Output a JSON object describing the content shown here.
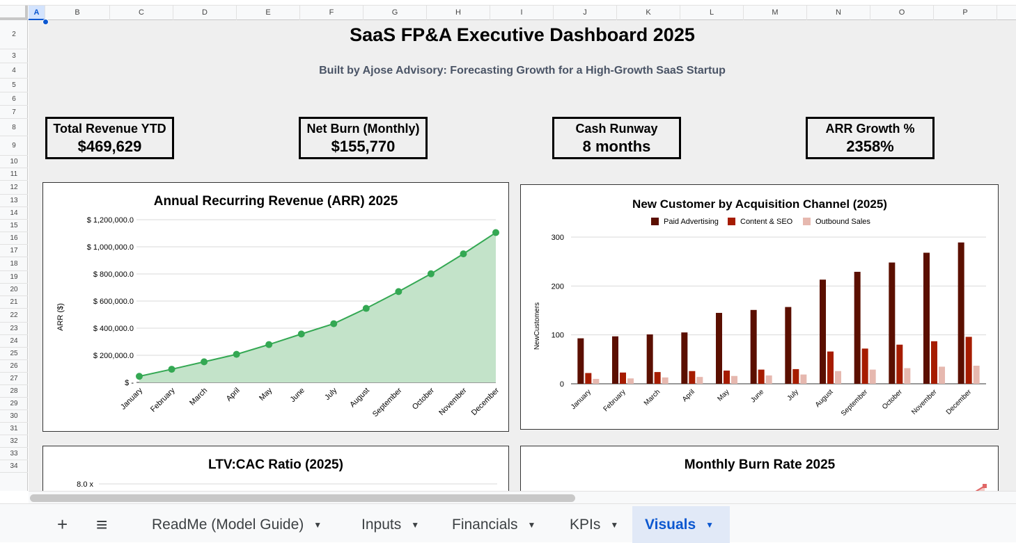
{
  "columns": [
    "A",
    "B",
    "C",
    "D",
    "E",
    "F",
    "G",
    "H",
    "I",
    "J",
    "K",
    "L",
    "M",
    "N",
    "O",
    "P"
  ],
  "rows": [
    "2",
    "3",
    "4",
    "5",
    "6",
    "7",
    "8",
    "9",
    "10",
    "11",
    "12",
    "13",
    "14",
    "15",
    "16",
    "17",
    "18",
    "19",
    "20",
    "21",
    "22",
    "23",
    "24",
    "25",
    "26",
    "27",
    "28",
    "29",
    "30",
    "31",
    "32",
    "33",
    "34"
  ],
  "dashboard": {
    "title": "SaaS FP&A Executive Dashboard 2025",
    "subtitle": "Built by Ajose Advisory: Forecasting Growth for a High-Growth SaaS Startup"
  },
  "kpis": [
    {
      "label": "Total Revenue YTD",
      "value": "$469,629"
    },
    {
      "label": "Net Burn (Monthly)",
      "value": "$155,770"
    },
    {
      "label": "Cash Runway",
      "value": "8 months"
    },
    {
      "label": "ARR Growth %",
      "value": "2358%"
    }
  ],
  "chart_data": [
    {
      "type": "area",
      "title": "Annual Recurring Revenue (ARR) 2025",
      "ylabel": "ARR ($)",
      "xlabel": "",
      "categories": [
        "January",
        "February",
        "March",
        "April",
        "May",
        "June",
        "July",
        "August",
        "September",
        "October",
        "November",
        "December"
      ],
      "values": [
        45000,
        97000,
        152000,
        207000,
        279000,
        357000,
        433000,
        546000,
        670000,
        801000,
        948000,
        1105000
      ],
      "ylim": [
        0,
        1200000
      ],
      "yticks": [
        "$ -",
        "$ 200,000.0",
        "$ 400,000.0",
        "$ 600,000.0",
        "$ 800,000.0",
        "$ 1,000,000.0",
        "$ 1,200,000.0"
      ],
      "color": "#34a853",
      "fill": "#c3e3c9",
      "grid": true
    },
    {
      "type": "bar",
      "title": "New Customer by Acquisition Channel (2025)",
      "ylabel": "NewCustomers",
      "xlabel": "",
      "categories": [
        "January",
        "February",
        "March",
        "April",
        "May",
        "June",
        "July",
        "August",
        "September",
        "October",
        "November",
        "December"
      ],
      "series": [
        {
          "name": "Paid Advertising",
          "color": "#5b0f00",
          "values": [
            93,
            97,
            101,
            105,
            145,
            151,
            157,
            213,
            229,
            248,
            268,
            289
          ]
        },
        {
          "name": "Content & SEO",
          "color": "#a61c00",
          "values": [
            22,
            23,
            24,
            26,
            27,
            29,
            30,
            66,
            72,
            80,
            87,
            96
          ]
        },
        {
          "name": "Outbound Sales",
          "color": "#e6b8af",
          "values": [
            10,
            11,
            13,
            14,
            16,
            17,
            19,
            26,
            29,
            32,
            35,
            37
          ]
        }
      ],
      "ylim": [
        0,
        300
      ],
      "yticks": [
        "0",
        "100",
        "200",
        "300"
      ],
      "legend": "top",
      "grid": true
    },
    {
      "type": "line",
      "title": "LTV:CAC Ratio (2025)",
      "yticks": [
        "8.0 x"
      ]
    },
    {
      "type": "area",
      "title": "Monthly Burn Rate 2025"
    }
  ],
  "tabs": {
    "add": "+",
    "menu": "≡",
    "items": [
      {
        "label": "ReadMe (Model Guide)",
        "active": false
      },
      {
        "label": "Inputs",
        "active": false
      },
      {
        "label": "Financials",
        "active": false
      },
      {
        "label": "KPIs",
        "active": false
      },
      {
        "label": "Visuals",
        "active": true
      }
    ],
    "dropdown_icon": "▼"
  }
}
